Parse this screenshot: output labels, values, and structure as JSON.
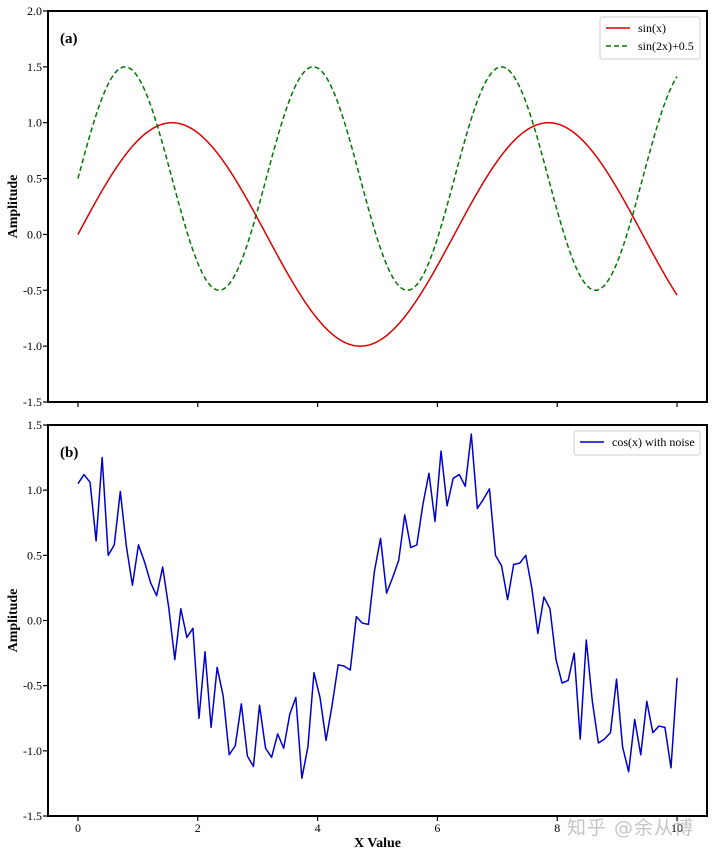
{
  "watermark": "知乎 @余从博",
  "chart_data": [
    {
      "type": "line",
      "panel_label": "(a)",
      "xlabel": "",
      "ylabel": "Amplitude",
      "xlim": [
        -0.5,
        10.5
      ],
      "ylim": [
        -1.5,
        2.0
      ],
      "yticks": [
        -1.5,
        -1.0,
        -0.5,
        0.0,
        0.5,
        1.0,
        1.5,
        2.0
      ],
      "ytick_labels": [
        "-1.5",
        "-1.0",
        "-0.5",
        "0.0",
        "0.5",
        "1.0",
        "1.5",
        "2.0"
      ],
      "legend_position": "top-right",
      "series": [
        {
          "name": "sin(x)",
          "color": "#dd0000",
          "dash": "solid",
          "expr": "sin(x)",
          "x_range": [
            0,
            10
          ]
        },
        {
          "name": "sin(2x)+0.5",
          "color": "#007700",
          "dash": "dashed",
          "expr": "sin(2x)+0.5",
          "x_range": [
            0,
            10
          ]
        }
      ]
    },
    {
      "type": "line",
      "panel_label": "(b)",
      "xlabel": "X Value",
      "ylabel": "Amplitude",
      "xlim": [
        -0.5,
        10.5
      ],
      "ylim": [
        -1.5,
        1.5
      ],
      "xticks": [
        0,
        2,
        4,
        6,
        8,
        10
      ],
      "xtick_labels": [
        "0",
        "2",
        "4",
        "6",
        "8",
        "10"
      ],
      "yticks": [
        -1.5,
        -1.0,
        -0.5,
        0.0,
        0.5,
        1.0,
        1.5
      ],
      "ytick_labels": [
        "-1.5",
        "-1.0",
        "-0.5",
        "0.0",
        "0.5",
        "1.0",
        "1.5"
      ],
      "legend_position": "top-right",
      "series": [
        {
          "name": "cos(x) with noise",
          "color": "#0000cc",
          "x_range": [
            0,
            10
          ],
          "values": [
            1.05,
            1.12,
            1.06,
            0.61,
            1.25,
            0.5,
            0.58,
            0.99,
            0.57,
            0.27,
            0.58,
            0.45,
            0.29,
            0.19,
            0.41,
            0.1,
            -0.3,
            0.09,
            -0.13,
            -0.06,
            -0.75,
            -0.24,
            -0.82,
            -0.36,
            -0.58,
            -1.03,
            -0.96,
            -0.64,
            -1.04,
            -1.12,
            -0.65,
            -0.98,
            -1.05,
            -0.87,
            -0.98,
            -0.72,
            -0.59,
            -1.21,
            -0.97,
            -0.4,
            -0.59,
            -0.92,
            -0.65,
            -0.34,
            -0.35,
            -0.38,
            0.03,
            -0.02,
            -0.03,
            0.38,
            0.63,
            0.21,
            0.33,
            0.46,
            0.81,
            0.56,
            0.58,
            0.89,
            1.13,
            0.76,
            1.3,
            0.88,
            1.09,
            1.12,
            1.03,
            1.43,
            0.86,
            0.93,
            1.01,
            0.5,
            0.42,
            0.16,
            0.43,
            0.44,
            0.5,
            0.25,
            -0.1,
            0.18,
            0.09,
            -0.3,
            -0.48,
            -0.46,
            -0.25,
            -0.91,
            -0.15,
            -0.62,
            -0.94,
            -0.91,
            -0.86,
            -0.45,
            -0.97,
            -1.16,
            -0.76,
            -1.03,
            -0.62,
            -0.86,
            -0.81,
            -0.82,
            -1.13,
            -0.44
          ]
        }
      ]
    }
  ]
}
